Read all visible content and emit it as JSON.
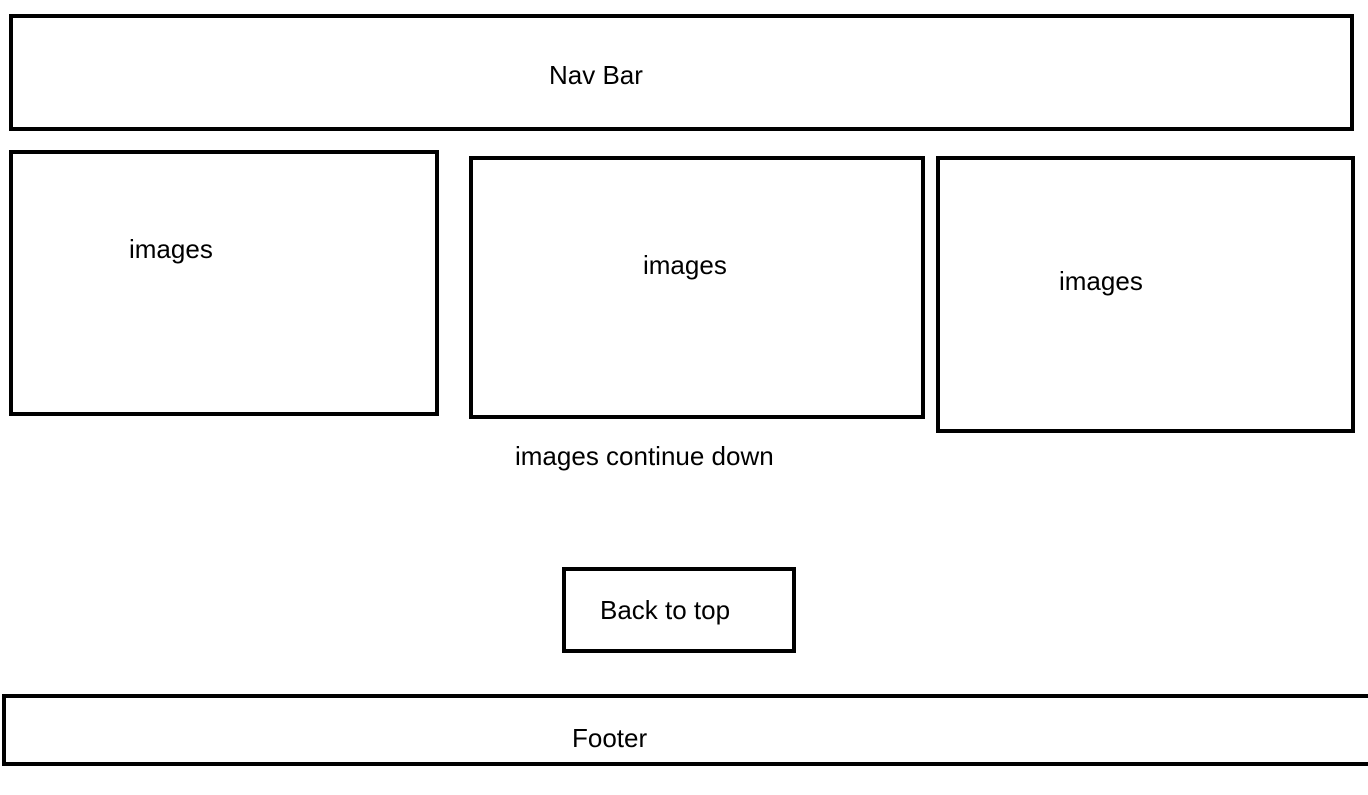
{
  "nav_bar": {
    "label": "Nav Bar"
  },
  "image_boxes": [
    {
      "label": "images"
    },
    {
      "label": "images"
    },
    {
      "label": "images"
    }
  ],
  "images_caption": "images continue down",
  "back_to_top": {
    "label": "Back to top"
  },
  "footer": {
    "label": "Footer"
  }
}
